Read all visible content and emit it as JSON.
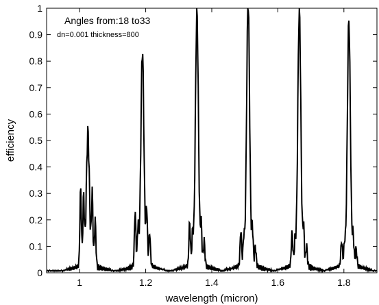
{
  "chart_data": {
    "type": "line",
    "title": "",
    "xlabel": "wavelength (micron)",
    "ylabel": "efficiency",
    "xlim": [
      0.9,
      1.9
    ],
    "ylim": [
      0,
      1
    ],
    "xticks": [
      1,
      1.2,
      1.4,
      1.6,
      1.8
    ],
    "xtick_labels": [
      "1",
      "1.2",
      "1.4",
      "1.6",
      "1.8"
    ],
    "yticks": [
      0,
      0.1,
      0.2,
      0.3,
      0.4,
      0.5,
      0.6,
      0.7,
      0.8,
      0.9,
      1
    ],
    "ytick_labels": [
      "0",
      "0.1",
      "0.2",
      "0.3",
      "0.4",
      "0.5",
      "0.6",
      "0.7",
      "0.8",
      "0.9",
      "1"
    ],
    "grid": false,
    "line_color": "#000000",
    "annotations": [
      "Angles from:18 to33",
      "dn=0.001 thickness=800"
    ],
    "series": [
      {
        "peaks": [
          {
            "x": 1.025,
            "y": 0.47,
            "side_lobes": [
              0.29,
              0.25,
              0.26,
              0.17
            ]
          },
          {
            "x": 1.19,
            "y": 0.78,
            "side_lobes": [
              0.2,
              0.14,
              0.2,
              0.12
            ]
          },
          {
            "x": 1.355,
            "y": 0.925,
            "side_lobes": [
              0.16,
              0.11,
              0.14,
              0.09
            ]
          },
          {
            "x": 1.51,
            "y": 0.965,
            "side_lobes": [
              0.13,
              0.09,
              0.13,
              0.07
            ]
          },
          {
            "x": 1.665,
            "y": 0.945,
            "side_lobes": [
              0.12,
              0.08,
              0.13,
              0.07
            ]
          },
          {
            "x": 1.815,
            "y": 0.89,
            "side_lobes": [
              0.09,
              0.07,
              0.1,
              0.06
            ]
          }
        ]
      }
    ]
  }
}
